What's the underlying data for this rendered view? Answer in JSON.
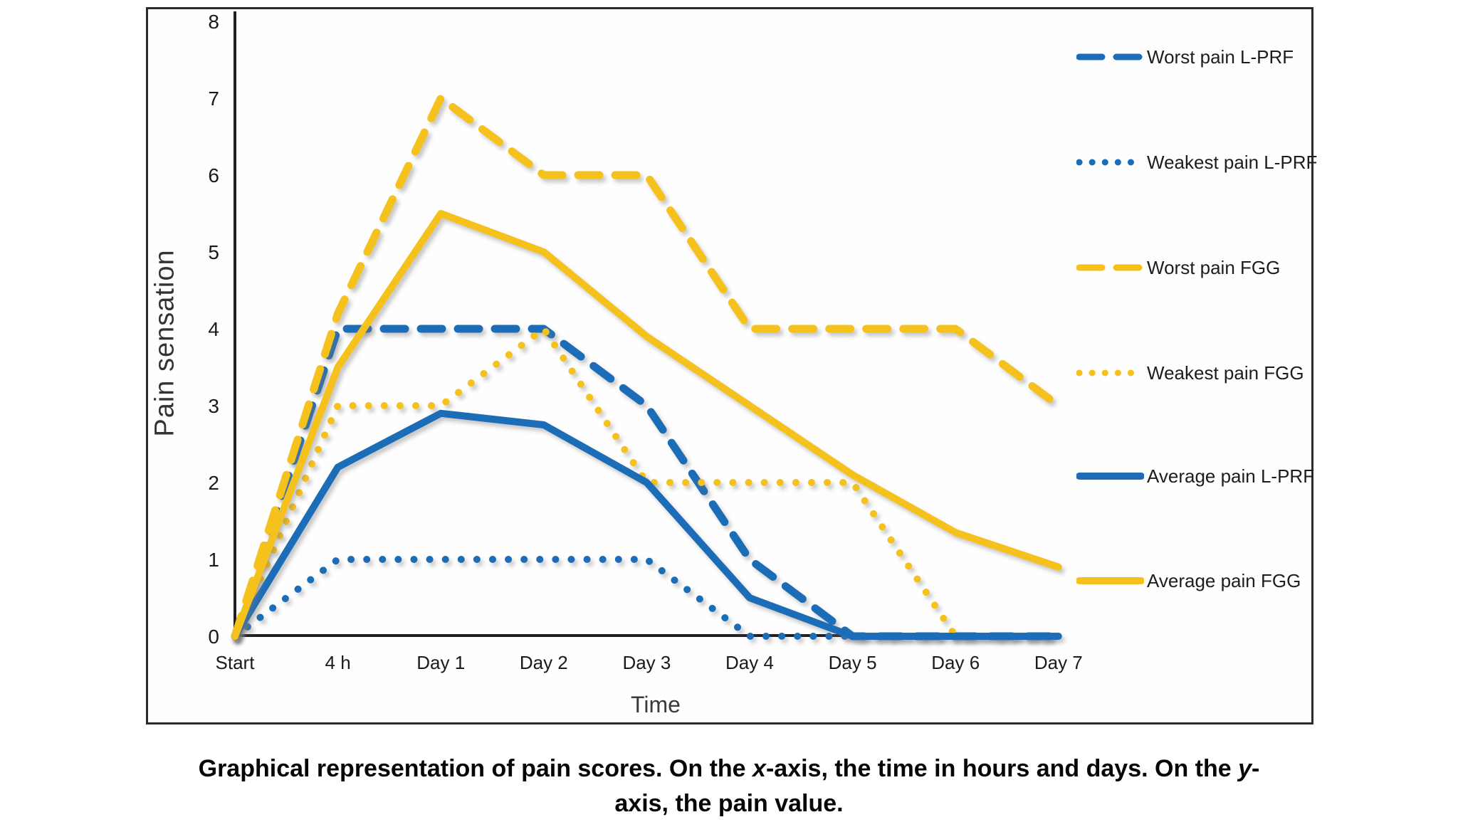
{
  "chart_data": {
    "type": "line",
    "title": "",
    "xlabel": "Time",
    "ylabel": "Pain sensation",
    "ylim": [
      0,
      8
    ],
    "y_ticks": [
      8,
      7,
      6,
      5,
      4,
      3,
      2,
      1,
      0
    ],
    "grid": false,
    "legend_position": "right",
    "categories": [
      "Start",
      "4 h",
      "Day 1",
      "Day 2",
      "Day 3",
      "Day 4",
      "Day 5",
      "Day 6",
      "Day 7"
    ],
    "series": [
      {
        "name": "Worst pain L-PRF",
        "style": "dashed",
        "color": "#1b6db8",
        "values": [
          0,
          4,
          4,
          4,
          3,
          1,
          0,
          0,
          0
        ]
      },
      {
        "name": "Weakest pain L-PRF",
        "style": "dotted",
        "color": "#1b6db8",
        "values": [
          0,
          1,
          1,
          1,
          1,
          0,
          0,
          0,
          0
        ]
      },
      {
        "name": "Worst pain FGG",
        "style": "dashed",
        "color": "#f5c11a",
        "values": [
          0,
          4.2,
          7,
          6,
          6,
          4,
          4,
          4,
          3
        ]
      },
      {
        "name": "Weakest pain FGG",
        "style": "dotted",
        "color": "#f5c11a",
        "values": [
          0,
          3,
          3,
          4,
          2,
          2,
          2,
          0,
          0
        ]
      },
      {
        "name": "Average pain L-PRF",
        "style": "solid",
        "color": "#1b6db8",
        "values": [
          0,
          2.2,
          2.9,
          2.75,
          2,
          0.5,
          0,
          0,
          0
        ]
      },
      {
        "name": "Average pain FGG",
        "style": "solid",
        "color": "#f5c11a",
        "values": [
          0,
          3.5,
          5.5,
          5,
          3.9,
          3,
          2.1,
          1.35,
          0.9
        ]
      }
    ]
  },
  "colors": {
    "axis": "#1f1f1f",
    "tick_text": "#1a1a1a"
  },
  "caption": {
    "parts": [
      {
        "text": "Graphical representation of pain scores. On the ",
        "italic": false
      },
      {
        "text": "x",
        "italic": true
      },
      {
        "text": "-axis, the time in hours and days. On the ",
        "italic": false
      },
      {
        "text": "y",
        "italic": true
      },
      {
        "text": "-",
        "italic": false,
        "break_after": true
      },
      {
        "text": "axis, the pain value.",
        "italic": false
      }
    ]
  }
}
